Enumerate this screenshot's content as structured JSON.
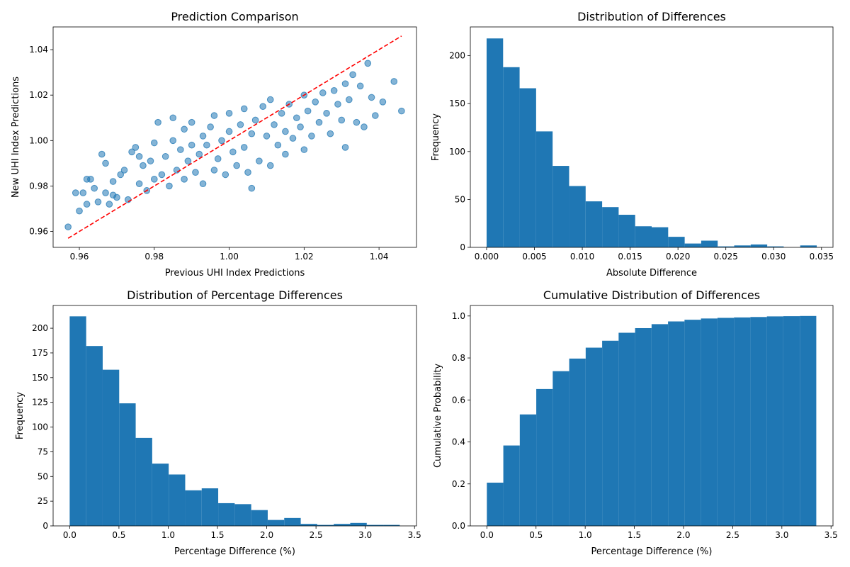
{
  "chart_data": [
    {
      "type": "scatter",
      "title": "Prediction Comparison",
      "xlabel": "Previous UHI Index Predictions",
      "ylabel": "New UHI Index Predictions",
      "xlim": [
        0.953,
        1.05
      ],
      "ylim": [
        0.953,
        1.05
      ],
      "xticks": [
        "0.96",
        "0.98",
        "1.00",
        "1.02",
        "1.04"
      ],
      "yticks": [
        "0.96",
        "0.98",
        "1.00",
        "1.02",
        "1.04"
      ],
      "point_color": "#1f77b4",
      "reference_line": {
        "x": [
          0.957,
          1.046
        ],
        "y": [
          0.957,
          1.046
        ],
        "color": "#ff0000",
        "style": "dashed"
      },
      "points": [
        [
          0.957,
          0.962
        ],
        [
          0.959,
          0.977
        ],
        [
          0.96,
          0.969
        ],
        [
          0.961,
          0.977
        ],
        [
          0.962,
          0.972
        ],
        [
          0.962,
          0.983
        ],
        [
          0.963,
          0.983
        ],
        [
          0.964,
          0.979
        ],
        [
          0.965,
          0.973
        ],
        [
          0.966,
          0.994
        ],
        [
          0.967,
          0.977
        ],
        [
          0.967,
          0.99
        ],
        [
          0.968,
          0.972
        ],
        [
          0.969,
          0.982
        ],
        [
          0.969,
          0.976
        ],
        [
          0.97,
          0.975
        ],
        [
          0.971,
          0.985
        ],
        [
          0.972,
          0.987
        ],
        [
          0.973,
          0.974
        ],
        [
          0.974,
          0.995
        ],
        [
          0.975,
          0.997
        ],
        [
          0.976,
          0.981
        ],
        [
          0.976,
          0.993
        ],
        [
          0.977,
          0.989
        ],
        [
          0.978,
          0.978
        ],
        [
          0.979,
          0.991
        ],
        [
          0.98,
          0.983
        ],
        [
          0.98,
          0.999
        ],
        [
          0.981,
          1.008
        ],
        [
          0.982,
          0.985
        ],
        [
          0.983,
          0.993
        ],
        [
          0.984,
          0.98
        ],
        [
          0.985,
          1.0
        ],
        [
          0.985,
          1.01
        ],
        [
          0.986,
          0.987
        ],
        [
          0.987,
          0.996
        ],
        [
          0.988,
          1.005
        ],
        [
          0.988,
          0.983
        ],
        [
          0.989,
          0.991
        ],
        [
          0.99,
          0.998
        ],
        [
          0.99,
          1.008
        ],
        [
          0.991,
          0.986
        ],
        [
          0.992,
          0.994
        ],
        [
          0.993,
          1.002
        ],
        [
          0.993,
          0.981
        ],
        [
          0.994,
          0.998
        ],
        [
          0.995,
          1.006
        ],
        [
          0.996,
          0.987
        ],
        [
          0.996,
          1.011
        ],
        [
          0.997,
          0.992
        ],
        [
          0.998,
          1.0
        ],
        [
          0.999,
          0.985
        ],
        [
          1.0,
          1.004
        ],
        [
          1.0,
          1.012
        ],
        [
          1.001,
          0.995
        ],
        [
          1.002,
          0.989
        ],
        [
          1.003,
          1.007
        ],
        [
          1.004,
          0.997
        ],
        [
          1.004,
          1.014
        ],
        [
          1.005,
          0.986
        ],
        [
          1.006,
          0.979
        ],
        [
          1.006,
          1.003
        ],
        [
          1.007,
          1.009
        ],
        [
          1.008,
          0.991
        ],
        [
          1.009,
          1.015
        ],
        [
          1.01,
          1.002
        ],
        [
          1.011,
          0.989
        ],
        [
          1.011,
          1.018
        ],
        [
          1.012,
          1.007
        ],
        [
          1.013,
          0.998
        ],
        [
          1.014,
          1.012
        ],
        [
          1.015,
          0.994
        ],
        [
          1.015,
          1.004
        ],
        [
          1.016,
          1.016
        ],
        [
          1.017,
          1.001
        ],
        [
          1.018,
          1.01
        ],
        [
          1.019,
          1.006
        ],
        [
          1.02,
          0.996
        ],
        [
          1.02,
          1.02
        ],
        [
          1.021,
          1.013
        ],
        [
          1.022,
          1.002
        ],
        [
          1.023,
          1.017
        ],
        [
          1.024,
          1.008
        ],
        [
          1.025,
          1.021
        ],
        [
          1.026,
          1.012
        ],
        [
          1.027,
          1.003
        ],
        [
          1.028,
          1.022
        ],
        [
          1.029,
          1.016
        ],
        [
          1.03,
          1.009
        ],
        [
          1.031,
          1.025
        ],
        [
          1.031,
          0.997
        ],
        [
          1.032,
          1.018
        ],
        [
          1.033,
          1.029
        ],
        [
          1.034,
          1.008
        ],
        [
          1.035,
          1.024
        ],
        [
          1.036,
          1.006
        ],
        [
          1.037,
          1.034
        ],
        [
          1.038,
          1.019
        ],
        [
          1.039,
          1.011
        ],
        [
          1.041,
          1.017
        ],
        [
          1.044,
          1.026
        ],
        [
          1.046,
          1.013
        ]
      ]
    },
    {
      "type": "bar",
      "title": "Distribution of Differences",
      "xlabel": "Absolute Difference",
      "ylabel": "Frequency",
      "xlim": [
        -0.0017,
        0.0362
      ],
      "ylim": [
        0,
        230
      ],
      "xticks": [
        "0.000",
        "0.005",
        "0.010",
        "0.015",
        "0.020",
        "0.025",
        "0.030",
        "0.035"
      ],
      "yticks": [
        "0",
        "50",
        "100",
        "150",
        "200"
      ],
      "bin_start": 0.0,
      "bin_width": 0.001725,
      "values": [
        218,
        188,
        166,
        121,
        85,
        64,
        48,
        42,
        34,
        22,
        21,
        11,
        4,
        7,
        1,
        2,
        3,
        1,
        0,
        2
      ],
      "bar_color": "#1f77b4"
    },
    {
      "type": "bar",
      "title": "Distribution of Percentage Differences",
      "xlabel": "Percentage Difference (%)",
      "ylabel": "Frequency",
      "xlim": [
        -0.168,
        3.52
      ],
      "ylim": [
        0,
        223
      ],
      "xticks": [
        "0.0",
        "0.5",
        "1.0",
        "1.5",
        "2.0",
        "2.5",
        "3.0",
        "3.5"
      ],
      "yticks": [
        "0",
        "25",
        "50",
        "75",
        "100",
        "125",
        "150",
        "175",
        "200"
      ],
      "bin_start": 0.0,
      "bin_width": 0.1675,
      "values": [
        212,
        182,
        158,
        124,
        89,
        63,
        52,
        36,
        38,
        23,
        22,
        16,
        6,
        8,
        2,
        1,
        2,
        3,
        1,
        1
      ],
      "bar_color": "#1f77b4"
    },
    {
      "type": "bar",
      "title": "Cumulative Distribution of Differences",
      "xlabel": "Percentage Difference (%)",
      "ylabel": "Cumulative Probability",
      "xlim": [
        -0.168,
        3.52
      ],
      "ylim": [
        0,
        1.05
      ],
      "xticks": [
        "0.0",
        "0.5",
        "1.0",
        "1.5",
        "2.0",
        "2.5",
        "3.0",
        "3.5"
      ],
      "yticks": [
        "0.0",
        "0.2",
        "0.4",
        "0.6",
        "0.8",
        "1.0"
      ],
      "bin_start": 0.0,
      "bin_width": 0.1675,
      "values": [
        0.206,
        0.383,
        0.531,
        0.652,
        0.737,
        0.797,
        0.849,
        0.882,
        0.92,
        0.942,
        0.961,
        0.974,
        0.982,
        0.988,
        0.991,
        0.993,
        0.995,
        0.998,
        0.999,
        1.0
      ],
      "bar_color": "#1f77b4"
    }
  ]
}
